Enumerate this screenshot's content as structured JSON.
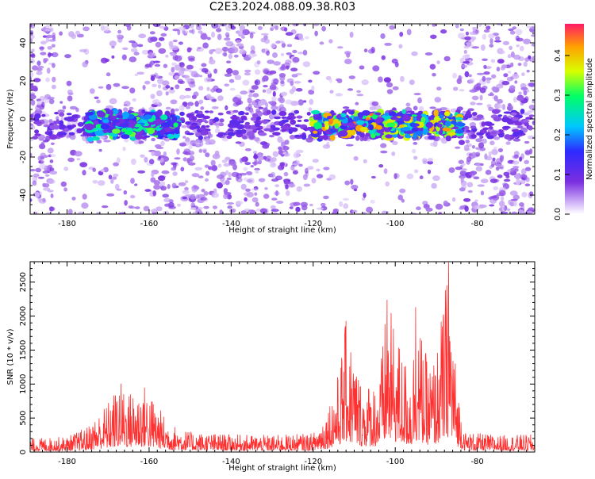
{
  "chart_data": [
    {
      "type": "heatmap",
      "title": "C2E3.2024.088.09.38.R03",
      "xlabel": "Height of straight line (km)",
      "ylabel": "Frequency (Hz)",
      "xlim": [
        -189,
        -66
      ],
      "ylim": [
        -50,
        50
      ],
      "xticks": [
        -180,
        -160,
        -140,
        -120,
        -100,
        -80
      ],
      "yticks": [
        -40,
        -20,
        0,
        20,
        40
      ],
      "colorbar": {
        "label": "Normalized spectral amplitude",
        "range": [
          0.0,
          0.48
        ],
        "ticks": [
          0.0,
          0.1,
          0.2,
          0.3,
          0.4
        ],
        "colormap": [
          "#ffffff",
          "#c9a8f5",
          "#7a2ee0",
          "#2e2aff",
          "#00c8ff",
          "#00ff66",
          "#d8ff00",
          "#ffa000",
          "#ff1a66"
        ]
      },
      "bands": [
        {
          "x": [
            -175,
            -153
          ],
          "freq_center": -3,
          "peak_amplitude": 0.33
        },
        {
          "x": [
            -120,
            -84
          ],
          "freq_center": -3,
          "peak_amplitude": 0.45
        }
      ],
      "sparse_regions_x": [
        [
          -183,
          -160
        ],
        [
          -123,
          -84
        ]
      ]
    },
    {
      "type": "line",
      "title": "",
      "xlabel": "Height of straight line (km)",
      "ylabel": "SNR (10 * v/v)",
      "xlim": [
        -189,
        -66
      ],
      "ylim": [
        0,
        2800
      ],
      "xticks": [
        -180,
        -160,
        -140,
        -120,
        -100,
        -80
      ],
      "yticks": [
        0,
        500,
        1000,
        1500,
        2000,
        2500
      ],
      "series": [
        {
          "color": "#ff3030",
          "envelope": [
            {
              "x": -189,
              "y": 200
            },
            {
              "x": -180,
              "y": 230
            },
            {
              "x": -175,
              "y": 380
            },
            {
              "x": -170,
              "y": 750
            },
            {
              "x": -167,
              "y": 1050
            },
            {
              "x": -165,
              "y": 900
            },
            {
              "x": -161,
              "y": 1000
            },
            {
              "x": -158,
              "y": 700
            },
            {
              "x": -155,
              "y": 420
            },
            {
              "x": -150,
              "y": 300
            },
            {
              "x": -140,
              "y": 260
            },
            {
              "x": -130,
              "y": 250
            },
            {
              "x": -120,
              "y": 280
            },
            {
              "x": -117,
              "y": 600
            },
            {
              "x": -114,
              "y": 1150
            },
            {
              "x": -112,
              "y": 1930
            },
            {
              "x": -108,
              "y": 1000
            },
            {
              "x": -104,
              "y": 1100
            },
            {
              "x": -102,
              "y": 2240
            },
            {
              "x": -98,
              "y": 1450
            },
            {
              "x": -96,
              "y": 1180
            },
            {
              "x": -95,
              "y": 2130
            },
            {
              "x": -92,
              "y": 1300
            },
            {
              "x": -90,
              "y": 1450
            },
            {
              "x": -87,
              "y": 2790
            },
            {
              "x": -85,
              "y": 1100
            },
            {
              "x": -83,
              "y": 300
            },
            {
              "x": -75,
              "y": 250
            },
            {
              "x": -66,
              "y": 260
            }
          ]
        }
      ]
    }
  ]
}
